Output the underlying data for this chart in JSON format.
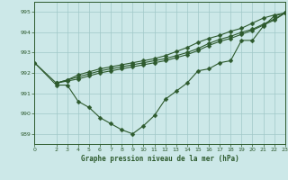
{
  "title": "Graphe pression niveau de la mer (hPa)",
  "bg_color": "#cce8e8",
  "grid_color": "#a0c8c8",
  "line_color": "#2d5a2d",
  "xlim": [
    0,
    23
  ],
  "ylim": [
    988.5,
    995.5
  ],
  "yticks": [
    989,
    990,
    991,
    992,
    993,
    994,
    995
  ],
  "xticks": [
    0,
    2,
    3,
    4,
    5,
    6,
    7,
    8,
    9,
    10,
    11,
    12,
    13,
    14,
    15,
    16,
    17,
    18,
    19,
    20,
    21,
    22,
    23
  ],
  "series": [
    {
      "x": [
        0,
        2,
        3,
        4,
        5,
        6,
        7,
        8,
        9,
        10,
        11,
        12,
        13,
        14,
        15,
        16,
        17,
        18,
        19,
        20,
        21,
        22,
        23
      ],
      "y": [
        992.5,
        991.4,
        991.4,
        990.6,
        990.3,
        989.8,
        989.5,
        989.2,
        989.0,
        989.4,
        989.9,
        990.7,
        991.1,
        991.5,
        992.1,
        992.2,
        992.5,
        992.6,
        993.6,
        993.6,
        994.3,
        994.8,
        994.95
      ]
    },
    {
      "x": [
        2,
        3,
        4,
        5,
        6,
        7,
        8,
        9,
        10,
        11,
        12,
        13,
        14,
        15,
        16,
        17,
        18,
        19,
        20,
        21,
        22,
        23
      ],
      "y": [
        991.5,
        991.6,
        991.7,
        991.85,
        992.0,
        992.1,
        992.2,
        992.3,
        992.4,
        992.5,
        992.6,
        992.75,
        992.9,
        993.1,
        993.35,
        993.55,
        993.7,
        993.9,
        994.1,
        994.35,
        994.6,
        994.95
      ]
    },
    {
      "x": [
        2,
        3,
        4,
        5,
        6,
        7,
        8,
        9,
        10,
        11,
        12,
        13,
        14,
        15,
        16,
        17,
        18,
        19,
        20,
        21,
        22,
        23
      ],
      "y": [
        991.5,
        991.65,
        991.8,
        991.95,
        992.1,
        992.2,
        992.3,
        992.4,
        992.5,
        992.6,
        992.7,
        992.85,
        993.0,
        993.2,
        993.45,
        993.65,
        993.8,
        994.0,
        994.15,
        994.4,
        994.65,
        994.95
      ]
    },
    {
      "x": [
        0,
        2,
        3,
        4,
        5,
        6,
        7,
        8,
        9,
        10,
        11,
        12,
        13,
        14,
        15,
        16,
        17,
        18,
        19,
        20,
        21,
        22,
        23
      ],
      "y": [
        992.5,
        991.5,
        991.65,
        991.9,
        992.05,
        992.2,
        992.3,
        992.4,
        992.5,
        992.6,
        992.7,
        992.85,
        993.05,
        993.25,
        993.5,
        993.7,
        993.85,
        994.05,
        994.2,
        994.45,
        994.7,
        994.85,
        994.95
      ]
    }
  ]
}
